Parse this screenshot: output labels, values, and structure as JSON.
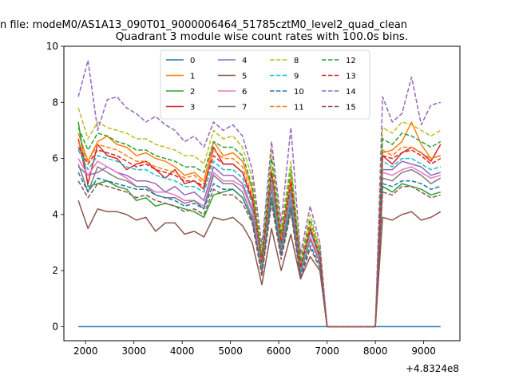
{
  "figure": {
    "suptitle": "n file: modeM0/AS1A13_090T01_9000006464_51785cztM0_level2_quad_clean"
  },
  "chart_data": {
    "type": "line",
    "title": "Quadrant 3 module wise count rates with 100.0s bins.",
    "xlabel": "",
    "ylabel": "",
    "x_offset_label": "+4.8324e8",
    "xlim": [
      1550,
      9750
    ],
    "ylim": [
      -0.5,
      10
    ],
    "xticks": [
      2000,
      3000,
      4000,
      5000,
      6000,
      7000,
      8000,
      9000
    ],
    "xtick_labels": [
      "2000",
      "3000",
      "4000",
      "5000",
      "6000",
      "7000",
      "8000",
      "9000"
    ],
    "yticks": [
      0,
      2,
      4,
      6,
      8,
      10
    ],
    "ytick_labels": [
      "0",
      "2",
      "4",
      "6",
      "8",
      "10"
    ],
    "legend_position": "upper-center",
    "legend_columns": 4,
    "x": [
      1850,
      2050,
      2250,
      2450,
      2650,
      2850,
      3050,
      3250,
      3450,
      3650,
      3850,
      4050,
      4250,
      4450,
      4650,
      4850,
      5050,
      5250,
      5450,
      5650,
      5850,
      6050,
      6250,
      6450,
      6650,
      6850,
      7000,
      8000,
      8150,
      8350,
      8550,
      8750,
      8950,
      9150,
      9350
    ],
    "series": [
      {
        "name": "0",
        "color": "#1f77b4",
        "dash": "solid",
        "values": [
          0,
          0,
          0,
          0,
          0,
          0,
          0,
          0,
          0,
          0,
          0,
          0,
          0,
          0,
          0,
          0,
          0,
          0,
          0,
          0,
          0,
          0,
          0,
          0,
          0,
          0,
          0,
          0,
          0,
          0,
          0,
          0,
          0,
          0,
          0
        ]
      },
      {
        "name": "1",
        "color": "#ff7f0e",
        "dash": "solid",
        "values": [
          6.9,
          5.9,
          6.6,
          6.8,
          6.5,
          6.4,
          6.1,
          6.2,
          6.0,
          5.9,
          5.7,
          5.4,
          5.5,
          5.2,
          6.6,
          6.1,
          6.2,
          5.9,
          4.9,
          2.4,
          5.6,
          3.2,
          5.3,
          2.1,
          3.6,
          2.5,
          0,
          0,
          6.2,
          6.3,
          6.6,
          7.3,
          6.5,
          6.0,
          6.1
        ]
      },
      {
        "name": "2",
        "color": "#2ca02c",
        "dash": "solid",
        "values": [
          7.3,
          5.0,
          5.1,
          5.2,
          5.0,
          4.9,
          4.5,
          4.6,
          4.3,
          4.4,
          4.3,
          4.2,
          4.1,
          3.9,
          4.7,
          4.8,
          4.9,
          4.6,
          3.8,
          2.0,
          4.6,
          2.6,
          4.2,
          2.0,
          3.5,
          2.5,
          0,
          0,
          5.0,
          4.8,
          5.1,
          5.0,
          4.9,
          4.7,
          4.8
        ]
      },
      {
        "name": "3",
        "color": "#d62728",
        "dash": "solid",
        "values": [
          6.7,
          5.1,
          6.5,
          6.1,
          6.0,
          5.6,
          5.8,
          5.9,
          5.6,
          5.3,
          5.6,
          5.1,
          5.2,
          4.9,
          6.4,
          5.8,
          5.8,
          5.5,
          4.5,
          2.3,
          5.5,
          3.0,
          5.2,
          2.1,
          3.4,
          2.5,
          0,
          0,
          6.1,
          5.8,
          6.2,
          6.4,
          6.2,
          5.9,
          6.5
        ]
      },
      {
        "name": "4",
        "color": "#9467bd",
        "dash": "solid",
        "values": [
          5.7,
          5.4,
          5.5,
          5.7,
          5.5,
          5.4,
          5.2,
          5.2,
          5.1,
          4.8,
          5.0,
          4.7,
          4.8,
          4.5,
          5.7,
          5.4,
          5.4,
          5.1,
          4.2,
          2.1,
          5.1,
          2.8,
          4.8,
          1.9,
          3.2,
          2.4,
          0,
          0,
          5.6,
          5.6,
          5.9,
          5.8,
          5.7,
          5.4,
          5.5
        ]
      },
      {
        "name": "5",
        "color": "#8c564b",
        "dash": "solid",
        "values": [
          4.5,
          3.5,
          4.2,
          4.1,
          4.1,
          4.0,
          3.8,
          3.9,
          3.4,
          3.7,
          3.7,
          3.3,
          3.4,
          3.2,
          3.9,
          3.8,
          3.9,
          3.6,
          3.0,
          1.5,
          3.5,
          2.0,
          3.3,
          1.7,
          2.5,
          2.0,
          0,
          0,
          3.9,
          3.8,
          4.0,
          4.1,
          3.8,
          3.9,
          4.1
        ]
      },
      {
        "name": "6",
        "color": "#e377c2",
        "dash": "solid",
        "values": [
          6.0,
          5.4,
          5.9,
          5.7,
          5.5,
          5.3,
          5.0,
          5.0,
          4.8,
          4.8,
          4.7,
          4.5,
          4.5,
          4.3,
          5.5,
          5.2,
          5.2,
          5.0,
          4.1,
          2.1,
          5.0,
          2.7,
          4.6,
          1.9,
          3.2,
          2.4,
          0,
          0,
          5.5,
          5.4,
          5.6,
          5.7,
          5.5,
          5.3,
          5.4
        ]
      },
      {
        "name": "7",
        "color": "#7f7f7f",
        "dash": "solid",
        "values": [
          5.8,
          4.8,
          5.7,
          5.5,
          5.3,
          5.2,
          5.0,
          5.0,
          4.7,
          4.6,
          4.6,
          4.4,
          4.5,
          4.2,
          5.4,
          5.1,
          5.1,
          4.8,
          3.9,
          2.0,
          4.9,
          2.7,
          4.5,
          1.9,
          3.1,
          2.3,
          0,
          0,
          5.3,
          5.2,
          5.5,
          5.6,
          5.4,
          5.1,
          5.3
        ]
      },
      {
        "name": "8",
        "color": "#bcbd22",
        "dash": "dashed",
        "values": [
          7.8,
          6.7,
          7.3,
          7.1,
          7.0,
          6.9,
          6.7,
          6.7,
          6.5,
          6.4,
          6.3,
          6.1,
          6.1,
          5.8,
          7.0,
          6.7,
          6.8,
          6.4,
          5.3,
          2.7,
          6.3,
          3.5,
          5.9,
          2.4,
          4.0,
          2.8,
          0,
          0,
          7.1,
          6.9,
          7.3,
          7.2,
          7.0,
          6.8,
          7.0
        ]
      },
      {
        "name": "9",
        "color": "#17becf",
        "dash": "dashed",
        "values": [
          6.3,
          5.6,
          6.1,
          6.0,
          5.9,
          5.7,
          5.6,
          5.6,
          5.4,
          5.3,
          5.2,
          5.0,
          5.0,
          4.8,
          5.9,
          5.6,
          5.6,
          5.3,
          4.4,
          2.2,
          5.3,
          2.9,
          4.9,
          2.0,
          3.4,
          2.5,
          0,
          0,
          5.9,
          5.7,
          6.0,
          6.0,
          5.8,
          5.6,
          5.7
        ]
      },
      {
        "name": "10",
        "color": "#1f77b4",
        "dash": "dashed",
        "values": [
          5.5,
          4.8,
          5.3,
          5.2,
          5.1,
          5.0,
          4.9,
          4.9,
          4.7,
          4.6,
          4.5,
          4.3,
          4.4,
          4.2,
          5.1,
          4.9,
          4.9,
          4.6,
          3.8,
          1.9,
          4.6,
          2.5,
          4.3,
          1.8,
          2.9,
          2.2,
          0,
          0,
          5.1,
          5.0,
          5.2,
          5.2,
          5.1,
          4.9,
          5.0
        ]
      },
      {
        "name": "11",
        "color": "#ff7f0e",
        "dash": "dashed",
        "values": [
          6.6,
          5.9,
          6.5,
          6.4,
          6.3,
          6.1,
          5.9,
          5.9,
          5.7,
          5.6,
          5.5,
          5.3,
          5.4,
          5.1,
          6.3,
          6.0,
          6.0,
          5.7,
          4.7,
          2.3,
          5.6,
          3.1,
          5.2,
          2.1,
          3.6,
          2.6,
          0,
          0,
          6.3,
          6.1,
          6.4,
          6.4,
          6.2,
          6.0,
          6.1
        ]
      },
      {
        "name": "12",
        "color": "#2ca02c",
        "dash": "dashed",
        "values": [
          7.1,
          6.3,
          6.9,
          6.8,
          6.6,
          6.5,
          6.3,
          6.3,
          6.1,
          6.0,
          5.9,
          5.7,
          5.7,
          5.5,
          6.6,
          6.4,
          6.4,
          6.1,
          5.0,
          2.5,
          6.0,
          3.3,
          5.6,
          2.3,
          3.8,
          2.7,
          0,
          0,
          6.7,
          6.5,
          6.9,
          6.8,
          6.6,
          6.4,
          6.6
        ]
      },
      {
        "name": "13",
        "color": "#d62728",
        "dash": "dashed",
        "values": [
          6.4,
          5.8,
          6.3,
          6.2,
          6.1,
          5.9,
          5.7,
          5.8,
          5.6,
          5.5,
          5.4,
          5.2,
          5.2,
          5.0,
          6.1,
          5.8,
          5.8,
          5.5,
          4.6,
          2.3,
          5.5,
          3.0,
          5.1,
          2.1,
          3.5,
          2.5,
          0,
          0,
          6.1,
          6.0,
          6.2,
          6.3,
          6.1,
          5.8,
          6.0
        ]
      },
      {
        "name": "14",
        "color": "#9467bd",
        "dash": "dashed",
        "values": [
          8.2,
          9.5,
          7.0,
          8.1,
          8.2,
          7.8,
          7.6,
          7.3,
          7.5,
          7.2,
          7.0,
          6.6,
          6.8,
          6.4,
          7.3,
          7.0,
          7.2,
          6.8,
          5.6,
          2.9,
          6.6,
          3.7,
          7.1,
          2.6,
          4.3,
          3.0,
          0,
          0,
          8.2,
          7.3,
          7.6,
          8.9,
          7.2,
          7.9,
          8.0
        ]
      },
      {
        "name": "15",
        "color": "#8c564b",
        "dash": "dashed",
        "values": [
          5.2,
          4.6,
          5.1,
          5.0,
          4.9,
          4.8,
          4.6,
          4.7,
          4.5,
          4.4,
          4.3,
          4.1,
          4.2,
          4.0,
          4.9,
          4.7,
          4.7,
          4.4,
          3.7,
          1.8,
          4.4,
          2.4,
          4.1,
          1.7,
          2.8,
          2.1,
          0,
          0,
          4.8,
          4.7,
          5.0,
          5.0,
          4.8,
          4.6,
          4.7
        ]
      }
    ]
  }
}
